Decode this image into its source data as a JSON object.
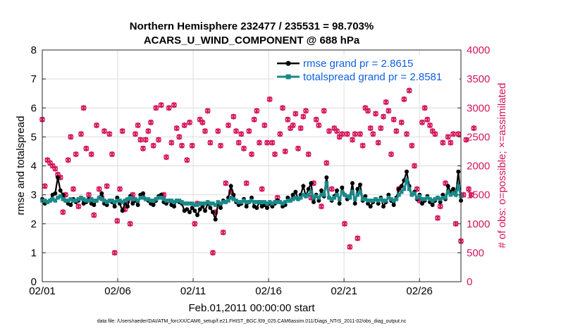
{
  "chart_data": {
    "type": "line",
    "title": "Northern Hemisphere 232477 / 235531 = 98.703%",
    "subtitle": "ACARS_U_WIND_COMPONENT @ 688 hPa",
    "xlabel": "Feb.01,2011 00:00:00 start",
    "ylabel_left": "rmse and totalspread",
    "ylabel_right": "# of obs: o=possible; ×=assimilated",
    "footer": "data file: /Users/raeder/DAI/ATM_forcXX/CAM6_setup/f.e21.FHIST_BGC.f09_025.CAM6assim.011/Diags_NTrS_2011-02/obs_diag_output.nc",
    "x_ticks": [
      {
        "value": 0,
        "label": "02/01"
      },
      {
        "value": 5,
        "label": "02/06"
      },
      {
        "value": 10,
        "label": "02/11"
      },
      {
        "value": 15,
        "label": "02/16"
      },
      {
        "value": 20,
        "label": "02/21"
      },
      {
        "value": 25,
        "label": "02/26"
      }
    ],
    "xlim": [
      0,
      27.75
    ],
    "ylim_left": [
      0,
      8
    ],
    "ylim_right": [
      0,
      4000
    ],
    "y_left_ticks": [
      "0",
      "1",
      "2",
      "3",
      "4",
      "5",
      "6",
      "7",
      "8"
    ],
    "y_right_ticks": [
      "0",
      "500",
      "1000",
      "1500",
      "2000",
      "2500",
      "3000",
      "3500",
      "4000"
    ],
    "colors": {
      "rmse": "#000000",
      "spread": "#1a8a8a",
      "obs": "#d4145a",
      "legend_text": "#1060e0"
    },
    "legend_position": "top-right",
    "legend": [
      {
        "name": "rmse grand pr = 2.8615"
      },
      {
        "name": "totalspread grand pr = 2.8581"
      }
    ],
    "series": [
      {
        "name": "rmse",
        "axis": "left",
        "values": [
          2.85,
          2.7,
          2.75,
          2.8,
          3.0,
          3.05,
          3.6,
          3.15,
          3.0,
          2.8,
          2.7,
          2.65,
          2.85,
          2.75,
          2.8,
          2.9,
          2.7,
          2.75,
          2.85,
          2.7,
          2.65,
          2.8,
          2.9,
          3.05,
          2.7,
          2.65,
          2.8,
          2.75,
          2.6,
          2.9,
          2.7,
          2.45,
          2.7,
          2.6,
          2.95,
          2.7,
          2.8,
          2.65,
          3.0,
          3.05,
          2.85,
          2.8,
          2.7,
          2.65,
          2.8,
          2.95,
          3.0,
          2.75,
          2.7,
          2.8,
          2.65,
          2.6,
          2.8,
          2.75,
          2.7,
          2.45,
          2.5,
          2.4,
          2.55,
          2.45,
          2.3,
          2.5,
          2.6,
          2.45,
          2.7,
          2.55,
          2.4,
          2.15,
          2.7,
          2.55,
          2.8,
          2.75,
          2.9,
          3.3,
          3.0,
          2.75,
          2.65,
          2.7,
          2.85,
          2.6,
          2.75,
          2.9,
          2.6,
          2.55,
          2.75,
          2.6,
          2.65,
          2.55,
          2.7,
          2.6,
          2.7,
          2.8,
          2.75,
          2.6,
          2.65,
          2.9,
          2.8,
          3.0,
          3.1,
          2.85,
          3.0,
          3.3,
          2.95,
          3.2,
          3.4,
          2.75,
          3.0,
          2.8,
          3.15,
          2.95,
          3.6,
          2.9,
          2.8,
          2.95,
          3.15,
          2.7,
          3.25,
          3.0,
          2.85,
          2.9,
          3.4,
          2.7,
          3.2,
          3.35,
          2.8,
          2.95,
          2.7,
          2.6,
          2.75,
          2.85,
          2.7,
          2.9,
          2.6,
          2.75,
          3.0,
          2.8,
          2.65,
          2.9,
          3.2,
          3.3,
          3.5,
          3.8,
          3.3,
          3.0,
          3.1,
          2.85,
          3.0,
          2.7,
          2.8,
          2.95,
          2.75,
          2.65,
          2.8,
          2.9,
          2.75,
          3.0,
          2.85,
          3.3,
          3.1,
          3.2,
          3.0,
          3.8,
          2.8
        ]
      },
      {
        "name": "totalspread",
        "axis": "left",
        "values": [
          2.8,
          2.8,
          2.75,
          2.8,
          2.85,
          2.8,
          2.9,
          2.95,
          2.85,
          2.8,
          2.8,
          2.85,
          2.8,
          2.8,
          2.85,
          2.9,
          2.85,
          2.8,
          2.8,
          2.85,
          2.8,
          2.8,
          2.9,
          2.85,
          2.8,
          2.75,
          2.8,
          2.8,
          2.75,
          2.8,
          2.8,
          2.75,
          2.8,
          2.85,
          2.9,
          2.85,
          2.85,
          2.8,
          2.9,
          2.9,
          2.85,
          2.85,
          2.8,
          2.8,
          2.85,
          2.9,
          2.9,
          2.85,
          2.8,
          2.8,
          2.8,
          2.75,
          2.8,
          2.8,
          2.75,
          2.7,
          2.7,
          2.7,
          2.7,
          2.65,
          2.65,
          2.7,
          2.7,
          2.7,
          2.75,
          2.7,
          2.7,
          2.65,
          2.75,
          2.7,
          2.75,
          2.75,
          2.8,
          2.9,
          2.85,
          2.8,
          2.75,
          2.75,
          2.8,
          2.75,
          2.75,
          2.8,
          2.75,
          2.75,
          2.75,
          2.75,
          2.75,
          2.7,
          2.75,
          2.7,
          2.75,
          2.75,
          2.75,
          2.7,
          2.75,
          2.8,
          2.8,
          2.85,
          2.9,
          2.85,
          2.9,
          3.0,
          2.95,
          3.0,
          3.1,
          2.9,
          2.95,
          2.9,
          3.0,
          3.0,
          3.4,
          2.9,
          2.85,
          2.9,
          3.0,
          2.85,
          3.1,
          3.0,
          2.95,
          2.9,
          3.1,
          2.85,
          3.0,
          3.1,
          2.85,
          2.85,
          2.8,
          2.8,
          2.8,
          2.85,
          2.8,
          2.85,
          2.8,
          2.8,
          2.9,
          2.85,
          2.8,
          2.85,
          3.0,
          3.1,
          3.2,
          3.5,
          3.2,
          3.0,
          3.05,
          2.9,
          2.95,
          2.85,
          2.85,
          2.9,
          2.85,
          2.8,
          2.85,
          2.9,
          2.85,
          2.9,
          2.9,
          3.1,
          3.0,
          3.05,
          3.0,
          3.3,
          2.95
        ]
      },
      {
        "name": "possible",
        "axis": "right",
        "values": [
          2800,
          1650,
          2100,
          2050,
          2000,
          1950,
          1850,
          1800,
          1200,
          1500,
          2100,
          2500,
          1600,
          2200,
          1300,
          2550,
          3000,
          2300,
          1500,
          2200,
          1150,
          2700,
          1600,
          1450,
          2600,
          1650,
          2550,
          2200,
          500,
          1050,
          1600,
          2600,
          1250,
          1400,
          1000,
          1500,
          2550,
          2700,
          2450,
          2300,
          2450,
          2600,
          2750,
          2350,
          3000,
          2450,
          3050,
          1500,
          2150,
          3000,
          2400,
          3050,
          2650,
          2500,
          2350,
          2700,
          2100,
          2750,
          2350,
          1000,
          1350,
          2800,
          2750,
          2600,
          2950,
          2400,
          500,
          1200,
          2600,
          2350,
          850,
          1700,
          2700,
          1550,
          2850,
          2600,
          2400,
          2550,
          2300,
          1700,
          2600,
          2200,
          2800,
          2950,
          2400,
          1600,
          2700,
          2400,
          3150,
          2400,
          2200,
          1450,
          2550,
          3000,
          2250,
          2800,
          2650,
          2700,
          2900,
          2300,
          2650,
          2850,
          2950,
          2200,
          1450,
          1700,
          2800,
          2700,
          1300,
          2950,
          2050,
          2600,
          1600,
          2650,
          2600,
          2500,
          2550,
          1000,
          2550,
          600,
          2450,
          2550,
          750,
          2550,
          2350,
          3000,
          2950,
          2650,
          2550,
          2900,
          2400,
          2650,
          2850,
          3100,
          2950,
          2200,
          2800,
          2600,
          1600,
          2750,
          3150,
          2550,
          3300,
          2350,
          2000,
          1600,
          1400,
          2750,
          3000,
          2800,
          2700,
          2600,
          2550,
          1100,
          1300,
          2400,
          1700,
          2500,
          2400,
          2550,
          1000,
          2550,
          700,
          1500,
          2450,
          1600,
          1500,
          2650
        ]
      }
    ]
  }
}
